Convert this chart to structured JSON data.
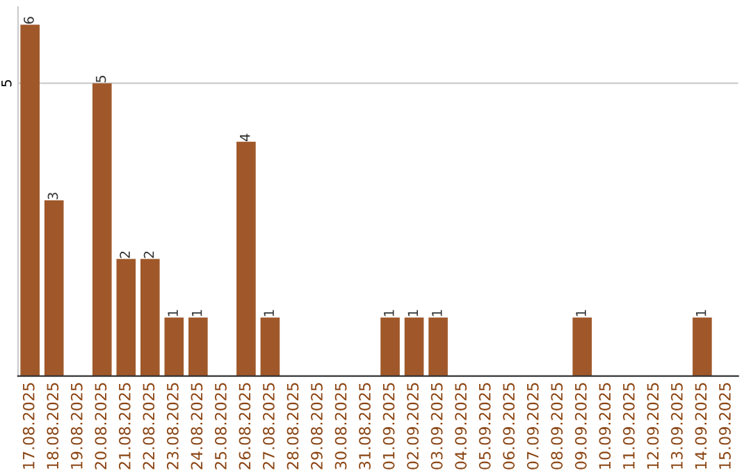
{
  "chart_data": {
    "type": "bar",
    "categories": [
      "17.08.2025",
      "18.08.2025",
      "19.08.2025",
      "20.08.2025",
      "21.08.2025",
      "22.08.2025",
      "23.08.2025",
      "24.08.2025",
      "25.08.2025",
      "26.08.2025",
      "27.08.2025",
      "28.08.2025",
      "29.08.2025",
      "30.08.2025",
      "31.08.2025",
      "01.09.2025",
      "02.09.2025",
      "03.09.2025",
      "04.09.2025",
      "05.09.2025",
      "06.09.2025",
      "07.09.2025",
      "08.09.2025",
      "09.09.2025",
      "10.09.2025",
      "11.09.2025",
      "12.09.2025",
      "13.09.2025",
      "14.09.2025",
      "15.09.2025"
    ],
    "values": [
      6,
      3,
      0,
      5,
      2,
      2,
      1,
      1,
      0,
      4,
      1,
      0,
      0,
      0,
      0,
      1,
      1,
      1,
      0,
      0,
      0,
      0,
      0,
      1,
      0,
      0,
      0,
      0,
      1,
      0
    ],
    "value_labels": [
      "6",
      "3",
      null,
      "5",
      "2",
      "2",
      "1",
      "1",
      null,
      "4",
      "1",
      null,
      null,
      null,
      null,
      "1",
      "1",
      "1",
      null,
      null,
      null,
      null,
      null,
      "1",
      null,
      null,
      null,
      null,
      "1",
      null
    ],
    "color": "#a0582a",
    "ylim": [
      0,
      6.3
    ],
    "yticks": [
      5
    ],
    "grid": "y",
    "legend": false
  }
}
